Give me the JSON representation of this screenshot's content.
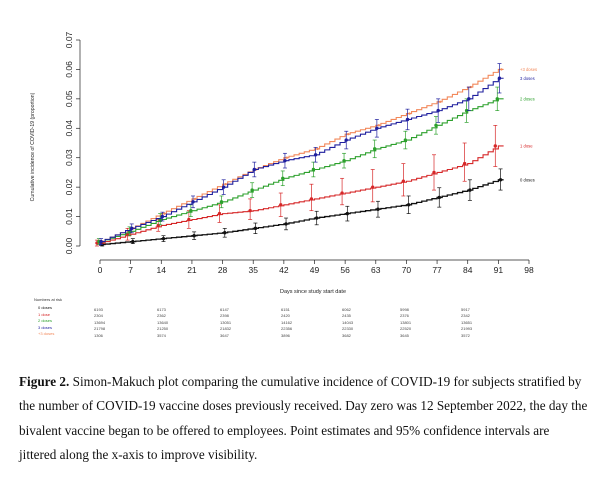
{
  "chart_data": {
    "type": "line",
    "title": "",
    "xlabel": "Days since study start date",
    "ylabel": "Cumulative incidence of COVID-19 (proportion)",
    "xlim": [
      0,
      98
    ],
    "ylim": [
      0,
      0.07
    ],
    "xticks": [
      0,
      7,
      14,
      21,
      28,
      35,
      42,
      49,
      56,
      63,
      70,
      77,
      84,
      91,
      98
    ],
    "xtick_labels": [
      "0",
      "7",
      "14",
      "21",
      "28",
      "35",
      "42",
      "49",
      "56",
      "63",
      "70",
      "77",
      "84",
      "91",
      "98"
    ],
    "yticks": [
      0,
      0.01,
      0.02,
      0.03,
      0.04,
      0.05,
      0.06,
      0.07
    ],
    "ytick_labels": [
      "0.00",
      "0.01",
      "0.02",
      "0.03",
      "0.04",
      "0.05",
      "0.06",
      "0.07"
    ],
    "legend_placement": "right, at line ends",
    "series": [
      {
        "name": "0 doses",
        "label": "0 doses",
        "color": "#111111",
        "x": [
          0,
          7,
          14,
          21,
          28,
          35,
          42,
          49,
          56,
          63,
          70,
          77,
          84,
          91
        ],
        "values": [
          0.0005,
          0.0015,
          0.0025,
          0.0035,
          0.0045,
          0.006,
          0.0075,
          0.0095,
          0.011,
          0.0125,
          0.014,
          0.0165,
          0.019,
          0.0225
        ],
        "ci": [
          [
            0,
            0.0015
          ],
          [
            0.0008,
            0.0025
          ],
          [
            0.0015,
            0.0035
          ],
          [
            0.0022,
            0.0048
          ],
          [
            0.003,
            0.006
          ],
          [
            0.0042,
            0.0078
          ],
          [
            0.0055,
            0.0095
          ],
          [
            0.0072,
            0.0118
          ],
          [
            0.0085,
            0.0135
          ],
          [
            0.0098,
            0.0152
          ],
          [
            0.011,
            0.017
          ],
          [
            0.0132,
            0.0198
          ],
          [
            0.0155,
            0.0225
          ],
          [
            0.019,
            0.0262
          ]
        ]
      },
      {
        "name": "1 dose",
        "label": "1 dose",
        "color": "#d62728",
        "x": [
          0,
          7,
          14,
          21,
          28,
          35,
          42,
          49,
          56,
          63,
          70,
          77,
          84,
          91
        ],
        "values": [
          0.001,
          0.004,
          0.007,
          0.009,
          0.011,
          0.012,
          0.014,
          0.016,
          0.018,
          0.02,
          0.022,
          0.025,
          0.028,
          0.034
        ],
        "ci": [
          [
            0,
            0.002
          ],
          [
            0.002,
            0.006
          ],
          [
            0.005,
            0.009
          ],
          [
            0.006,
            0.012
          ],
          [
            0.008,
            0.014
          ],
          [
            0.009,
            0.016
          ],
          [
            0.01,
            0.018
          ],
          [
            0.012,
            0.021
          ],
          [
            0.014,
            0.023
          ],
          [
            0.015,
            0.026
          ],
          [
            0.017,
            0.028
          ],
          [
            0.019,
            0.031
          ],
          [
            0.022,
            0.035
          ],
          [
            0.027,
            0.041
          ]
        ]
      },
      {
        "name": "2 doses",
        "label": "2 doses",
        "color": "#2ca02c",
        "x": [
          0,
          7,
          14,
          21,
          28,
          35,
          42,
          49,
          56,
          63,
          70,
          77,
          84,
          91
        ],
        "values": [
          0.0015,
          0.005,
          0.009,
          0.012,
          0.015,
          0.019,
          0.023,
          0.026,
          0.029,
          0.033,
          0.036,
          0.041,
          0.046,
          0.05
        ],
        "ci": [
          [
            0.0005,
            0.0025
          ],
          [
            0.0035,
            0.0065
          ],
          [
            0.0072,
            0.011
          ],
          [
            0.01,
            0.014
          ],
          [
            0.013,
            0.017
          ],
          [
            0.0165,
            0.0215
          ],
          [
            0.0205,
            0.0255
          ],
          [
            0.0235,
            0.0285
          ],
          [
            0.0265,
            0.0315
          ],
          [
            0.03,
            0.036
          ],
          [
            0.033,
            0.039
          ],
          [
            0.038,
            0.044
          ],
          [
            0.042,
            0.05
          ],
          [
            0.046,
            0.054
          ]
        ]
      },
      {
        "name": "3 doses",
        "label": "3 doses",
        "color": "#1f1f9e",
        "x": [
          0,
          7,
          14,
          21,
          28,
          35,
          42,
          49,
          56,
          63,
          70,
          77,
          84,
          91
        ],
        "values": [
          0.0015,
          0.006,
          0.01,
          0.015,
          0.02,
          0.026,
          0.029,
          0.031,
          0.036,
          0.04,
          0.043,
          0.046,
          0.05,
          0.057
        ],
        "ci": [
          [
            0.0005,
            0.0025
          ],
          [
            0.0045,
            0.0075
          ],
          [
            0.0085,
            0.0115
          ],
          [
            0.013,
            0.017
          ],
          [
            0.0175,
            0.0225
          ],
          [
            0.0235,
            0.0285
          ],
          [
            0.0265,
            0.0315
          ],
          [
            0.0285,
            0.0335
          ],
          [
            0.033,
            0.039
          ],
          [
            0.037,
            0.043
          ],
          [
            0.0395,
            0.0465
          ],
          [
            0.042,
            0.05
          ],
          [
            0.046,
            0.054
          ],
          [
            0.052,
            0.062
          ]
        ]
      },
      {
        "name": "+3 doses",
        "label": "+3 doses",
        "color": "#f2885a",
        "x": [
          0,
          7,
          14,
          21,
          28,
          35,
          42,
          49,
          56,
          63,
          70,
          77,
          84,
          91
        ],
        "values": [
          0.0015,
          0.006,
          0.011,
          0.016,
          0.021,
          0.026,
          0.03,
          0.033,
          0.038,
          0.041,
          0.045,
          0.049,
          0.054,
          0.06
        ],
        "ci": null
      }
    ]
  },
  "risk_table": {
    "title": "Numbers at risk",
    "rows": [
      {
        "label": "0 doses",
        "color": "#111111",
        "values": [
          "6193",
          "6173",
          "6147",
          "6151",
          "6062",
          "5998",
          "5917"
        ]
      },
      {
        "label": "1 dose",
        "color": "#d62728",
        "values": [
          "2304",
          "2362",
          "2398",
          "2420",
          "2435",
          "2376",
          "2342"
        ]
      },
      {
        "label": "2 doses",
        "color": "#2ca02c",
        "values": [
          "13694",
          "13640",
          "13051",
          "14162",
          "14043",
          "13801",
          "13651"
        ]
      },
      {
        "label": "3 doses",
        "color": "#1f1f9e",
        "values": [
          "21798",
          "21250",
          "21832",
          "22356",
          "22330",
          "22520",
          "21993"
        ]
      },
      {
        "label": "+3 doses",
        "color": "#f2885a",
        "values": [
          "1306",
          "3574",
          "3647",
          "3896",
          "3682",
          "3645",
          "3572"
        ]
      }
    ]
  },
  "caption": {
    "label": "Figure 2.",
    "text": " Simon-Makuch plot comparing the cumulative incidence of COVID-19 for subjects stratified by the number of COVID-19 vaccine doses previously received. Day zero was 12 September 2022, the day the bivalent vaccine began to be offered to employees. Point estimates and 95% confidence intervals are jittered along the x-axis to improve visibility."
  }
}
